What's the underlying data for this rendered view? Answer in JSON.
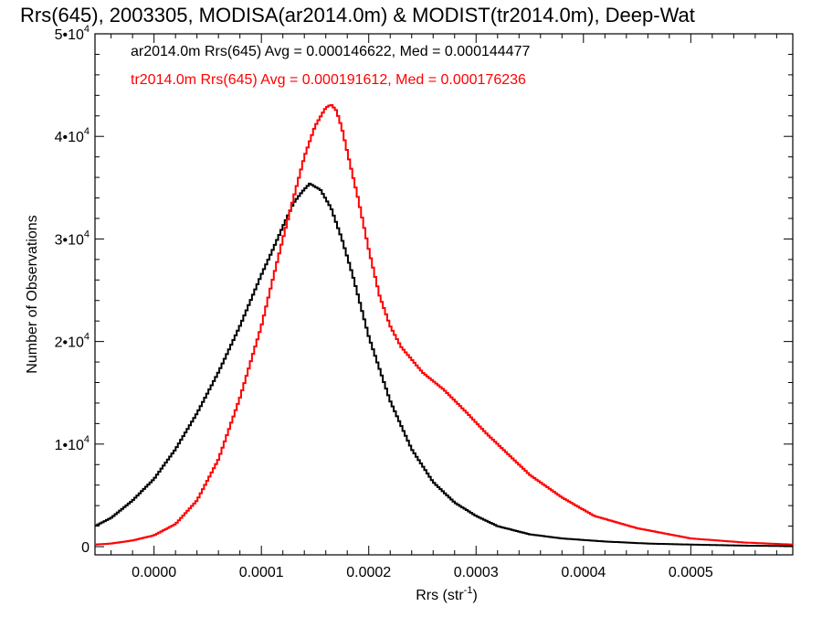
{
  "chart_data": {
    "type": "line",
    "style": "step-histogram",
    "title": "Rrs(645), 2003305, MODISA(ar2014.0m) & MODIST(tr2014.0m), Deep-Wat",
    "xlabel": "Rrs (str",
    "xlabel_sup": "-1",
    "xlabel_end": ")",
    "ylabel": "Number of Observations",
    "xlim": [
      -5.5e-05,
      0.000595
    ],
    "ylim": [
      -800,
      50000
    ],
    "grid": false,
    "legend_position": "top-left",
    "x_ticks": [
      {
        "value": 0.0,
        "label": "0.0000"
      },
      {
        "value": 0.0001,
        "label": "0.0001"
      },
      {
        "value": 0.0002,
        "label": "0.0002"
      },
      {
        "value": 0.0003,
        "label": "0.0003"
      },
      {
        "value": 0.0004,
        "label": "0.0004"
      },
      {
        "value": 0.0005,
        "label": "0.0005"
      }
    ],
    "y_ticks": [
      {
        "value": 0,
        "base": "0",
        "sup": ""
      },
      {
        "value": 10000,
        "base": "1•10",
        "sup": "4"
      },
      {
        "value": 20000,
        "base": "2•10",
        "sup": "4"
      },
      {
        "value": 30000,
        "base": "3•10",
        "sup": "4"
      },
      {
        "value": 40000,
        "base": "4•10",
        "sup": "4"
      },
      {
        "value": 50000,
        "base": "5•10",
        "sup": "4"
      }
    ],
    "series": [
      {
        "name": "ar2014.0m Rrs(645) Avg = 0.000146622, Med = 0.000144477",
        "color": "#000000",
        "x": [
          -5.5e-05,
          -4e-05,
          -2e-05,
          0.0,
          2e-05,
          4e-05,
          6e-05,
          8e-05,
          0.0001,
          0.00011,
          0.00012,
          0.00013,
          0.000138,
          0.000145,
          0.000155,
          0.000165,
          0.000175,
          0.000185,
          0.0002,
          0.00022,
          0.00024,
          0.00026,
          0.00028,
          0.0003,
          0.00032,
          0.00035,
          0.00038,
          0.00042,
          0.00046,
          0.0005,
          0.00055,
          0.000595
        ],
        "y": [
          2000,
          2800,
          4500,
          6600,
          9500,
          13000,
          17000,
          21500,
          26500,
          28800,
          31200,
          33500,
          34600,
          35400,
          34800,
          33000,
          30000,
          26500,
          20500,
          14200,
          9500,
          6300,
          4300,
          3000,
          2000,
          1200,
          800,
          500,
          300,
          200,
          100,
          50
        ]
      },
      {
        "name": "tr2014.0m Rrs(645) Avg = 0.000191612, Med = 0.000176236",
        "color": "#ff0000",
        "x": [
          -5.5e-05,
          -4e-05,
          -2e-05,
          0.0,
          2e-05,
          4e-05,
          6e-05,
          8e-05,
          0.0001,
          0.00011,
          0.00012,
          0.00013,
          0.00014,
          0.00015,
          0.00016,
          0.000165,
          0.00017,
          0.000175,
          0.00018,
          0.00019,
          0.0002,
          0.00021,
          0.00022,
          0.00023,
          0.00025,
          0.00027,
          0.00029,
          0.00031,
          0.00033,
          0.00035,
          0.00038,
          0.00041,
          0.00045,
          0.0005,
          0.00055,
          0.000595
        ],
        "y": [
          200,
          300,
          600,
          1100,
          2200,
          4500,
          8500,
          14500,
          21500,
          25800,
          30000,
          34000,
          38000,
          41000,
          42800,
          43100,
          42500,
          40800,
          38500,
          34000,
          29000,
          24500,
          21500,
          19500,
          17000,
          15300,
          13200,
          11000,
          9000,
          7000,
          4800,
          3000,
          1800,
          800,
          400,
          200
        ]
      }
    ]
  }
}
